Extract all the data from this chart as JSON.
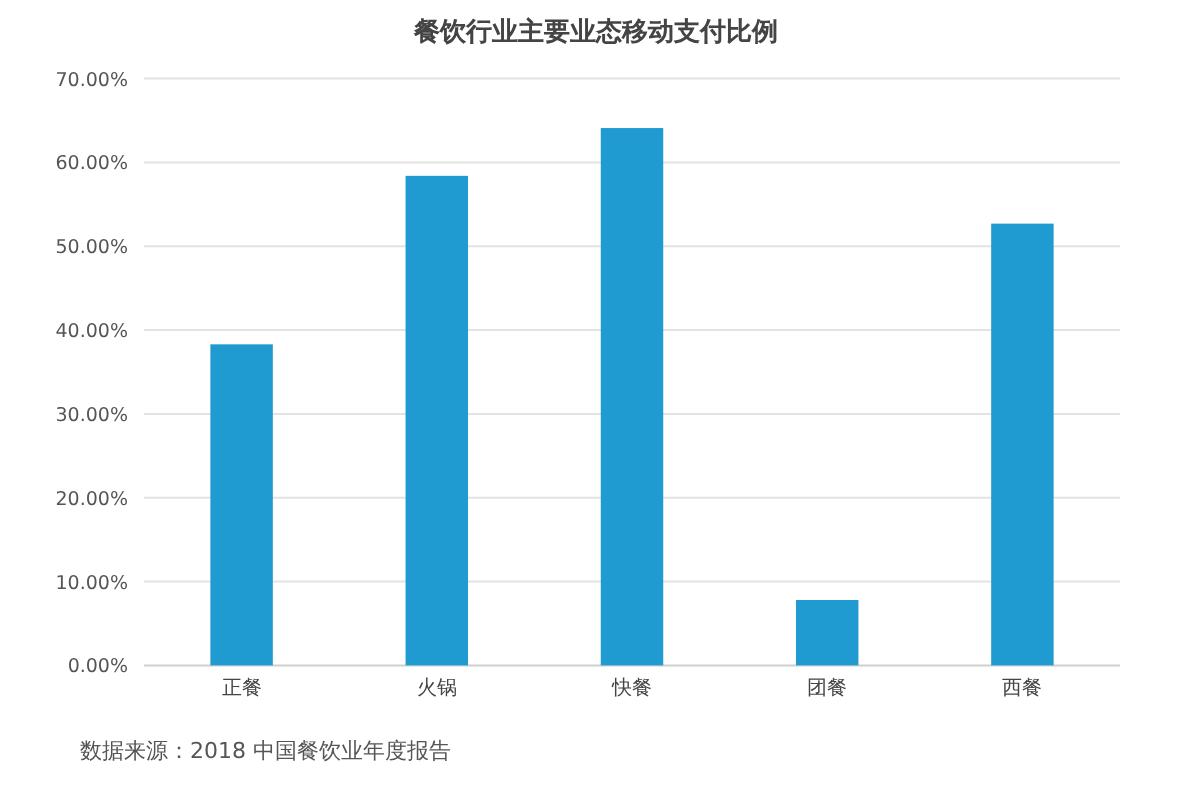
{
  "chart_data": {
    "type": "bar",
    "title": "餐饮行业主要业态移动支付比例",
    "categories": [
      "正餐",
      "火锅",
      "快餐",
      "团餐",
      "西餐"
    ],
    "values": [
      38.3,
      58.4,
      64.1,
      7.8,
      52.7
    ],
    "color": "#1f9bd1",
    "ylim": [
      0,
      70
    ],
    "yticks": [
      {
        "value": 0,
        "label": "0.00%"
      },
      {
        "value": 10,
        "label": "10.00%"
      },
      {
        "value": 20,
        "label": "20.00%"
      },
      {
        "value": 30,
        "label": "30.00%"
      },
      {
        "value": 40,
        "label": "40.00%"
      },
      {
        "value": 50,
        "label": "50.00%"
      },
      {
        "value": 60,
        "label": "60.00%"
      },
      {
        "value": 70,
        "label": "70.00%"
      }
    ],
    "grid": "y",
    "annotations": [
      "数据来源：2018 中国餐饮业年度报告"
    ]
  }
}
